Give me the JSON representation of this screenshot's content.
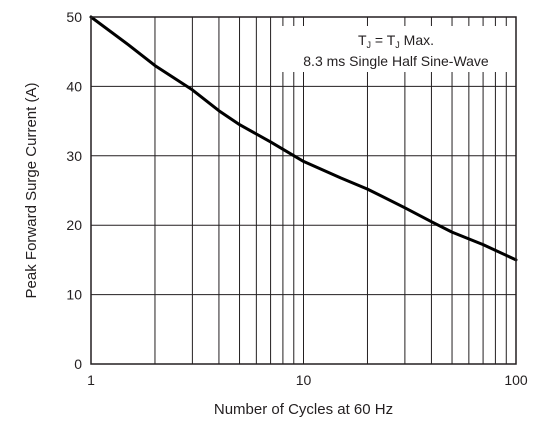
{
  "chart_data": {
    "type": "line",
    "title": "",
    "xlabel": "Number of Cycles at 60 Hz",
    "ylabel": "Peak Forward Surge Current (A)",
    "xscale": "log",
    "xlim": [
      1,
      100
    ],
    "ylim": [
      0,
      50
    ],
    "grid": true,
    "x_ticks": [
      1,
      10,
      100
    ],
    "y_ticks": [
      0,
      10,
      20,
      30,
      40,
      50
    ],
    "x_tick_labels": [
      "1",
      "10",
      "100"
    ],
    "y_tick_labels": [
      "0",
      "10",
      "20",
      "30",
      "40",
      "50"
    ],
    "annotation": {
      "line1_part1": "T",
      "line1_sub1": "J",
      "line1_part2": " = T",
      "line1_sub2": "J",
      "line1_part3": " Max.",
      "line2": "8.3 ms Single Half Sine-Wave",
      "placement": "top-right"
    },
    "series": [
      {
        "x": [
          1,
          1.5,
          2,
          3,
          4,
          5,
          7,
          10,
          15,
          20,
          30,
          40,
          50,
          70,
          100
        ],
        "y": [
          50,
          46,
          43,
          39.5,
          36.5,
          34.5,
          32,
          29.2,
          26.8,
          25.2,
          22.5,
          20.5,
          19.0,
          17.2,
          15.0
        ],
        "color": "#000000"
      }
    ]
  }
}
